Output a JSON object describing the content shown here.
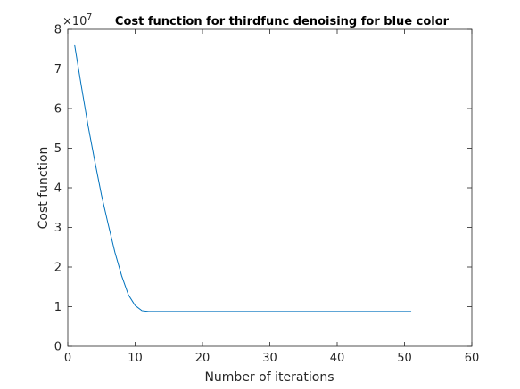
{
  "chart_data": {
    "type": "line",
    "title": "Cost function for thirdfunc denoising for blue color",
    "xlabel": "Number of iterations",
    "ylabel": "Cost function",
    "y_multiplier": "×10",
    "y_exponent": "7",
    "xlim": [
      0,
      60
    ],
    "ylim": [
      0,
      8
    ],
    "xticks": [
      0,
      10,
      20,
      30,
      40,
      50,
      60
    ],
    "yticks": [
      0,
      1,
      2,
      3,
      4,
      5,
      6,
      7,
      8
    ],
    "grid": false,
    "line_color": "#0072bd",
    "series": [
      {
        "x": [
          1,
          2,
          3,
          4,
          5,
          6,
          7,
          8,
          9,
          10,
          11,
          12,
          13,
          14,
          15,
          16,
          17,
          18,
          19,
          20,
          21,
          22,
          23,
          24,
          25,
          26,
          27,
          28,
          29,
          30,
          31,
          32,
          33,
          34,
          35,
          36,
          37,
          38,
          39,
          40,
          41,
          42,
          43,
          44,
          45,
          46,
          47,
          48,
          49,
          50,
          51
        ],
        "values": [
          7.62,
          6.58,
          5.58,
          4.68,
          3.82,
          3.08,
          2.37,
          1.78,
          1.3,
          1.03,
          0.9,
          0.88,
          0.88,
          0.88,
          0.88,
          0.88,
          0.88,
          0.88,
          0.88,
          0.88,
          0.88,
          0.88,
          0.88,
          0.88,
          0.88,
          0.88,
          0.88,
          0.88,
          0.88,
          0.88,
          0.88,
          0.88,
          0.88,
          0.88,
          0.88,
          0.88,
          0.88,
          0.88,
          0.88,
          0.88,
          0.88,
          0.88,
          0.88,
          0.88,
          0.88,
          0.88,
          0.88,
          0.88,
          0.88,
          0.88,
          0.88
        ]
      }
    ]
  }
}
